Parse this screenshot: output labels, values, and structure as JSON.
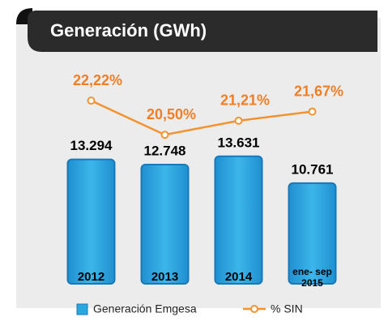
{
  "chart_data": {
    "type": "bar",
    "title": "Generación (GWh)",
    "categories": [
      "2012",
      "2013",
      "2014",
      "ene- sep 2015"
    ],
    "series": [
      {
        "name": "Generación Emgesa",
        "color": "#29a8e0",
        "values": [
          13294,
          12748,
          13631,
          10761
        ],
        "value_labels": [
          "13.294",
          "12.748",
          "13.631",
          "10.761"
        ]
      },
      {
        "name": "% SIN",
        "type": "line",
        "axis": "y2",
        "color": "#f4922f",
        "values": [
          22.22,
          20.5,
          21.21,
          21.67
        ],
        "value_labels": [
          "22,22%",
          "20,50%",
          "21,21%",
          "21,67%"
        ]
      }
    ],
    "ylim": [
      0,
      15000
    ],
    "y2lim": [
      19,
      23
    ],
    "legend": "bottom"
  }
}
